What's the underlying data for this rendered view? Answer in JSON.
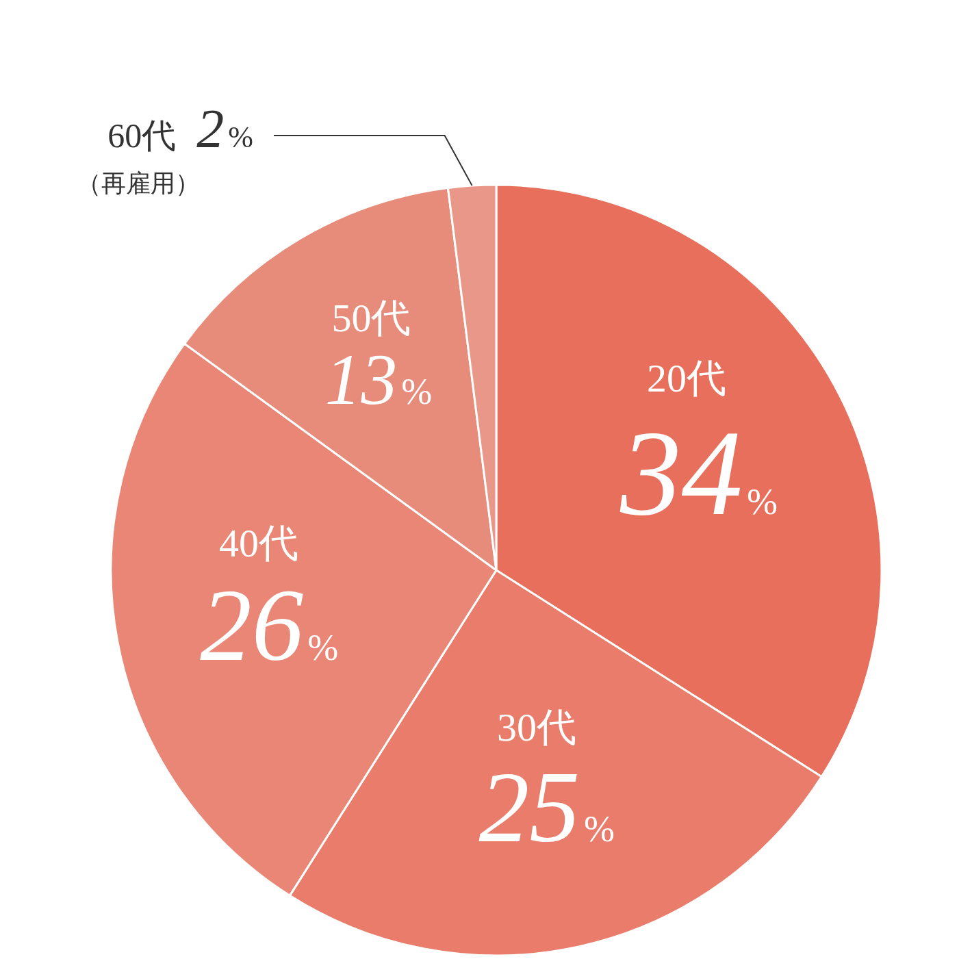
{
  "chart_data": {
    "type": "pie",
    "categories": [
      "20代",
      "30代",
      "40代",
      "50代",
      "60代"
    ],
    "values": [
      34,
      25,
      26,
      13,
      2
    ],
    "colors": [
      "#e76f5c",
      "#e97c6a",
      "#e98676",
      "#e78b7b",
      "#e99788"
    ],
    "value_labels": [
      "34%",
      "25%",
      "26%",
      "13%",
      "2%"
    ],
    "annotations": [
      "（再雇用）"
    ]
  }
}
